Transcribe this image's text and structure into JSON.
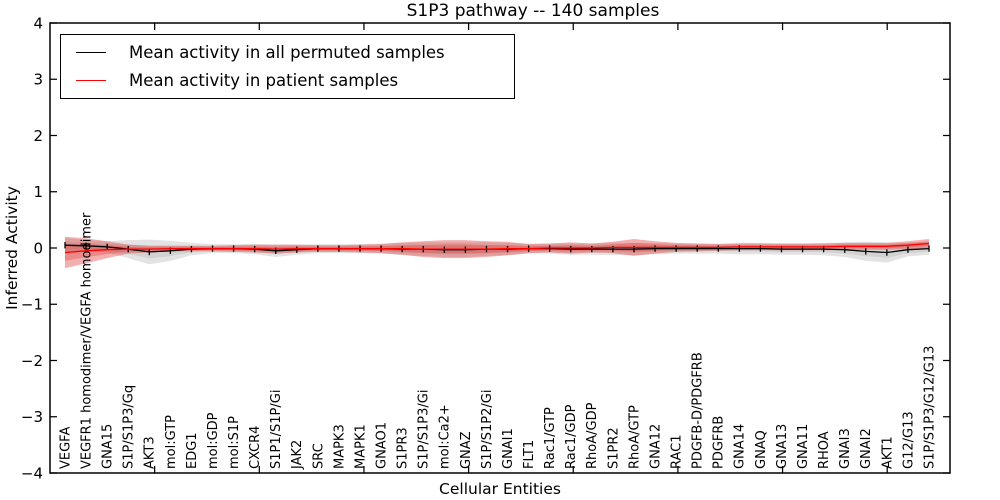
{
  "title": "S1P3 pathway -- 140 samples",
  "legend": {
    "entries": [
      {
        "label": "Mean activity in all permuted samples",
        "color": "#000000"
      },
      {
        "label": "Mean activity in patient samples",
        "color": "#ff0000"
      }
    ]
  },
  "chart_data": {
    "type": "line",
    "title": "S1P3 pathway -- 140 samples",
    "xlabel": "Cellular Entities",
    "ylabel": "Inferred Activity",
    "ylim": [
      -4,
      4
    ],
    "yticks": [
      -4,
      -3,
      -2,
      -1,
      0,
      1,
      2,
      3,
      4
    ],
    "xticks_minor_positions": [
      5,
      10,
      15,
      20,
      25,
      30,
      35,
      40
    ],
    "xlim_units": [
      0,
      43
    ],
    "grid": false,
    "legend_position": "upper left",
    "categories": [
      "VEGFA",
      "VEGFR1 homodimer/VEGFA homodimer",
      "GNA15",
      "S1P/S1P3/Gq",
      "AKT3",
      "mol:GTP",
      "EDG1",
      "mol:GDP",
      "mol:S1P",
      "CXCR4",
      "S1P1/S1P/Gi",
      "JAK2",
      "SRC",
      "MAPK3",
      "MAPK1",
      "GNAO1",
      "S1PR3",
      "S1P/S1P3/Gi",
      "mol:Ca2+",
      "GNAZ",
      "S1P/S1P2/Gi",
      "GNAI1",
      "FLT1",
      "Rac1/GTP",
      "Rac1/GDP",
      "RhoA/GDP",
      "S1PR2",
      "RhoA/GTP",
      "GNA12",
      "RAC1",
      "PDGFB-D/PDGFRB",
      "PDGFRB",
      "GNA14",
      "GNAQ",
      "GNA13",
      "GNA11",
      "RHOA",
      "GNAI3",
      "GNAI2",
      "AKT1",
      "G12/G13",
      "S1P/S1P3/G12/G13"
    ],
    "series": [
      {
        "name": "Mean activity in all permuted samples",
        "color": "#000000",
        "marker": "|",
        "values": [
          0.05,
          0.04,
          0.02,
          -0.02,
          -0.07,
          -0.05,
          -0.02,
          -0.01,
          -0.01,
          -0.02,
          -0.05,
          -0.03,
          -0.01,
          -0.01,
          -0.01,
          -0.01,
          -0.02,
          -0.02,
          -0.03,
          -0.03,
          -0.02,
          -0.02,
          -0.01,
          -0.01,
          -0.02,
          -0.02,
          -0.02,
          -0.02,
          -0.01,
          -0.01,
          -0.01,
          -0.01,
          -0.01,
          -0.01,
          -0.02,
          -0.02,
          -0.02,
          -0.03,
          -0.06,
          -0.08,
          -0.03,
          -0.01
        ],
        "band_halfwidth": [
          0.13,
          0.1,
          0.1,
          0.16,
          0.22,
          0.18,
          0.11,
          0.08,
          0.08,
          0.09,
          0.11,
          0.09,
          0.08,
          0.08,
          0.08,
          0.09,
          0.11,
          0.12,
          0.13,
          0.13,
          0.12,
          0.11,
          0.09,
          0.09,
          0.1,
          0.1,
          0.11,
          0.11,
          0.1,
          0.09,
          0.09,
          0.09,
          0.1,
          0.1,
          0.1,
          0.1,
          0.11,
          0.13,
          0.17,
          0.18,
          0.12,
          0.11
        ],
        "band_color": "#999999",
        "band_opacity": 0.28
      },
      {
        "name": "Mean activity in patient samples",
        "color": "#ff0000",
        "marker": "none",
        "values": [
          -0.08,
          -0.05,
          -0.03,
          -0.02,
          -0.02,
          -0.01,
          -0.01,
          -0.01,
          -0.01,
          -0.01,
          -0.02,
          -0.01,
          -0.01,
          -0.01,
          -0.01,
          -0.01,
          -0.01,
          -0.02,
          -0.02,
          -0.02,
          -0.02,
          -0.01,
          -0.01,
          0.0,
          0.0,
          0.0,
          0.01,
          0.01,
          0.01,
          0.01,
          0.01,
          0.01,
          0.02,
          0.02,
          0.02,
          0.02,
          0.02,
          0.03,
          0.03,
          0.03,
          0.05,
          0.08
        ],
        "band_halfwidth": [
          0.28,
          0.22,
          0.15,
          0.08,
          0.06,
          0.05,
          0.05,
          0.05,
          0.06,
          0.07,
          0.08,
          0.07,
          0.06,
          0.06,
          0.07,
          0.08,
          0.11,
          0.14,
          0.16,
          0.16,
          0.14,
          0.12,
          0.08,
          0.08,
          0.1,
          0.08,
          0.1,
          0.15,
          0.11,
          0.08,
          0.07,
          0.06,
          0.06,
          0.06,
          0.06,
          0.06,
          0.06,
          0.06,
          0.06,
          0.06,
          0.07,
          0.08
        ],
        "band_color": "#dd3030",
        "band_opacity": 0.38
      }
    ]
  }
}
